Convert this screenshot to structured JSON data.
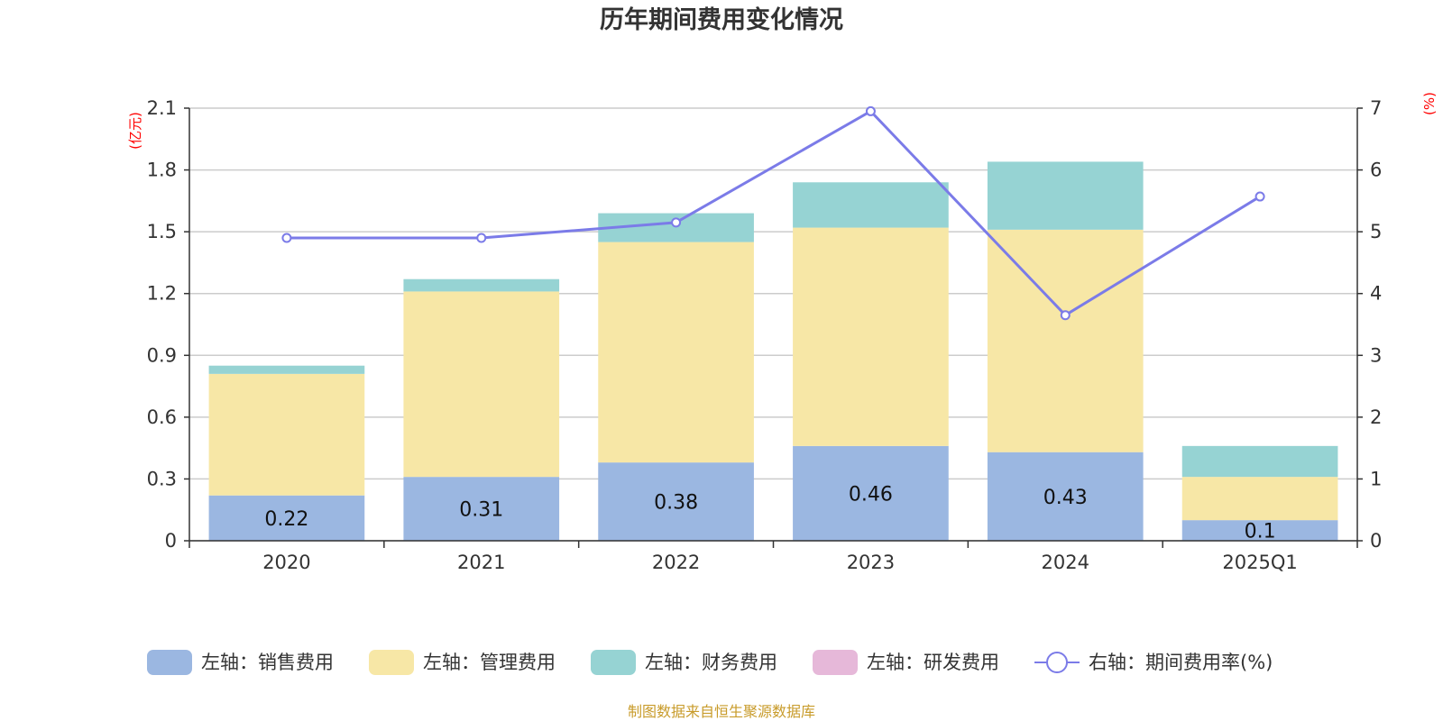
{
  "chart_data": {
    "type": "bar",
    "title": "历年期间费用变化情况",
    "categories": [
      "2020",
      "2021",
      "2022",
      "2023",
      "2024",
      "2025Q1"
    ],
    "series": [
      {
        "name": "左轴：销售费用",
        "axis": "left",
        "color": "#9bb7e1",
        "values": [
          0.22,
          0.31,
          0.38,
          0.46,
          0.43,
          0.1
        ]
      },
      {
        "name": "左轴：管理费用",
        "axis": "left",
        "color": "#f7e7a6",
        "values": [
          0.59,
          0.9,
          1.07,
          1.06,
          1.08,
          0.21
        ]
      },
      {
        "name": "左轴：财务费用",
        "axis": "left",
        "color": "#96d3d3",
        "values": [
          0.04,
          0.06,
          0.14,
          0.22,
          0.33,
          0.15
        ]
      },
      {
        "name": "左轴：研发费用",
        "axis": "left",
        "color": "#e6b8d9",
        "values": [
          0,
          0,
          0,
          0,
          0,
          0
        ]
      },
      {
        "name": "右轴：期间费用率(%)",
        "axis": "right",
        "type": "line",
        "color": "#7b7be8",
        "values": [
          4.9,
          4.9,
          5.15,
          6.95,
          3.65,
          5.57
        ]
      }
    ],
    "data_labels": [
      "0.22",
      "0.31",
      "0.38",
      "0.46",
      "0.43",
      "0.1"
    ],
    "left_axis": {
      "unit": "(亿元)",
      "ylim": [
        0,
        2.1
      ],
      "ticks": [
        "0",
        "0.3",
        "0.6",
        "0.9",
        "1.2",
        "1.5",
        "1.8",
        "2.1"
      ]
    },
    "right_axis": {
      "unit": "(%)",
      "ylim": [
        0,
        7
      ],
      "ticks": [
        "0",
        "1",
        "2",
        "3",
        "4",
        "5",
        "6",
        "7"
      ]
    },
    "grid": true,
    "legend_position": "bottom"
  },
  "source": "制图数据来自恒生聚源数据库"
}
